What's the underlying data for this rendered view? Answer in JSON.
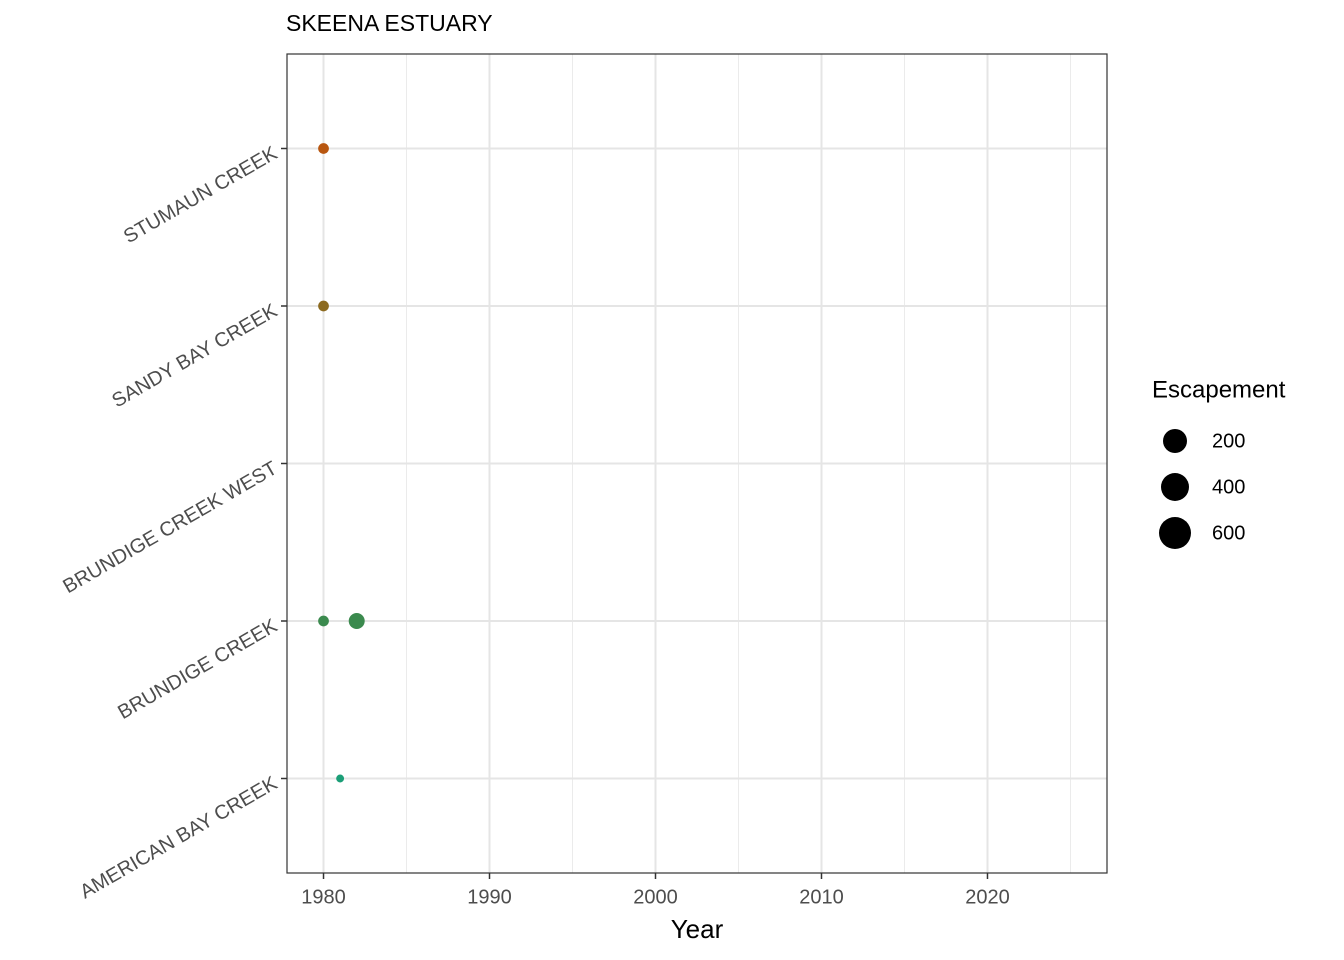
{
  "chart_data": {
    "type": "scatter",
    "title": "SKEENA ESTUARY",
    "x_label": "Year",
    "xlim": [
      1977.8,
      2027.2
    ],
    "xticks": [
      1980,
      1990,
      2000,
      2010,
      2020
    ],
    "xminor": [
      1985,
      1995,
      2005,
      2015,
      2025
    ],
    "ylim": [
      0.4,
      5.6
    ],
    "grid": true,
    "series": [
      {
        "name": "AMERICAN BAY CREEK",
        "color": "#1b9e77",
        "x": [
          1981
        ],
        "sizes": [
          60
        ]
      },
      {
        "name": "BRUNDIGE CREEK",
        "color": "#3b8a4e",
        "x": [
          1980,
          1982
        ],
        "sizes": [
          250,
          600
        ]
      },
      {
        "name": "BRUNDIGE CREEK WEST",
        "color": "#5f7a36",
        "x": [],
        "sizes": []
      },
      {
        "name": "SANDY BAY CREEK",
        "color": "#8c6a1f",
        "x": [
          1980
        ],
        "sizes": [
          250
        ]
      },
      {
        "name": "STUMAUN CREEK",
        "color": "#b8560f",
        "x": [
          1980
        ],
        "sizes": [
          250
        ]
      }
    ],
    "size_legend": {
      "title": "Escapement",
      "values": [
        200,
        400,
        600
      ]
    }
  }
}
